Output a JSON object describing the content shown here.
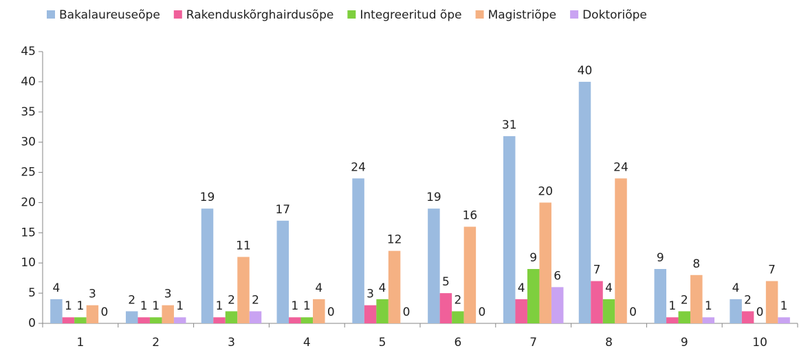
{
  "chart_data": {
    "type": "bar",
    "categories": [
      "1",
      "2",
      "3",
      "4",
      "5",
      "6",
      "7",
      "8",
      "9",
      "10"
    ],
    "series": [
      {
        "name": "Bakalaureuseõpe",
        "color": "#9bbbe0",
        "values": [
          4,
          2,
          19,
          17,
          24,
          19,
          31,
          40,
          9,
          4
        ]
      },
      {
        "name": "Rakenduskõrghairdusõpe",
        "color": "#f0609a",
        "values": [
          1,
          1,
          1,
          1,
          3,
          5,
          4,
          7,
          1,
          2
        ]
      },
      {
        "name": "Integreeritud õpe",
        "color": "#7ecf3e",
        "values": [
          1,
          1,
          2,
          1,
          4,
          2,
          9,
          4,
          2,
          0
        ]
      },
      {
        "name": "Magistriõpe",
        "color": "#f5b183",
        "values": [
          3,
          3,
          11,
          4,
          12,
          16,
          20,
          24,
          8,
          7
        ]
      },
      {
        "name": "Doktoriõpe",
        "color": "#c9a3f2",
        "values": [
          0,
          1,
          2,
          0,
          0,
          0,
          6,
          0,
          1,
          1
        ]
      }
    ],
    "ylim": [
      0,
      45
    ],
    "yticks": [
      0,
      5,
      10,
      15,
      20,
      25,
      30,
      35,
      40,
      45
    ],
    "grid": false,
    "legend": "top"
  }
}
